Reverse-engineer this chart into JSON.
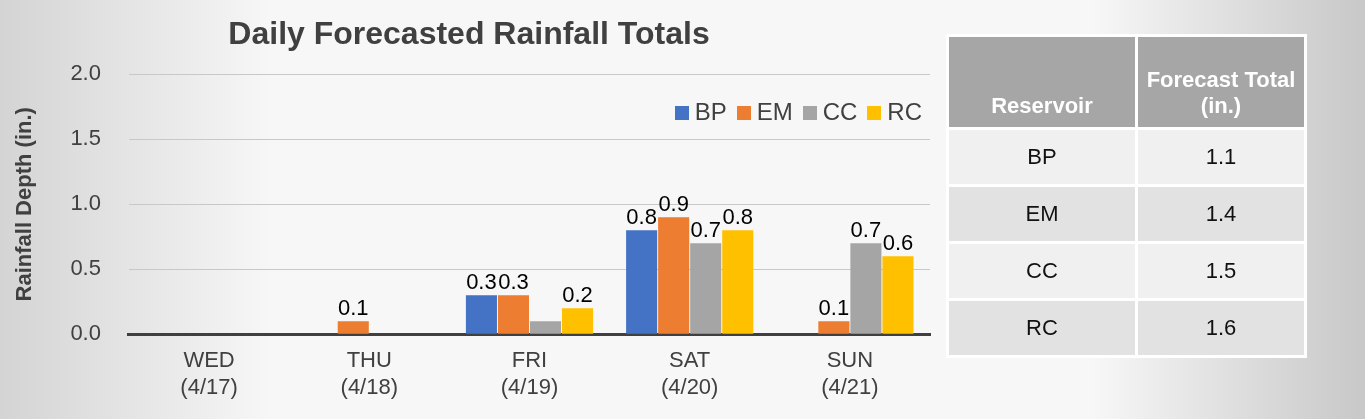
{
  "chart_data": [
    {
      "type": "bar",
      "title": "Daily Forecasted Rainfall Totals",
      "ylabel": "Rainfall Depth (in.)",
      "categories": [
        "WED (4/17)",
        "THU (4/18)",
        "FRI (4/19)",
        "SAT (4/20)",
        "SUN (4/21)"
      ],
      "series": [
        {
          "name": "BP",
          "color": "#4472c4",
          "values": [
            0,
            0,
            0.3,
            0.8,
            0
          ],
          "value_labels": [
            null,
            null,
            "0.3",
            "0.8",
            null
          ]
        },
        {
          "name": "EM",
          "color": "#ed7d31",
          "values": [
            0,
            0.1,
            0.3,
            0.9,
            0.1
          ],
          "value_labels": [
            null,
            "0.1",
            "0.3",
            "0.9",
            "0.1"
          ]
        },
        {
          "name": "CC",
          "color": "#a5a5a5",
          "values": [
            0,
            0,
            0.1,
            0.7,
            0.7
          ],
          "value_labels": [
            null,
            null,
            null,
            "0.7",
            "0.7"
          ]
        },
        {
          "name": "RC",
          "color": "#ffc000",
          "values": [
            0,
            0,
            0.2,
            0.8,
            0.6
          ],
          "value_labels": [
            null,
            null,
            "0.2",
            "0.8",
            "0.6"
          ]
        }
      ],
      "ylim": [
        0,
        2
      ],
      "yticks": [
        {
          "value": 0,
          "label": "0.0"
        },
        {
          "value": 0.5,
          "label": "0.5"
        },
        {
          "value": 1,
          "label": "1.0"
        },
        {
          "value": 1.5,
          "label": "1.5"
        },
        {
          "value": 2,
          "label": "2.0"
        }
      ],
      "grid": "y",
      "legend": "top right"
    },
    {
      "type": "other",
      "xlabel": "Reservoir",
      "ylabel": "Forecast Total (in.)",
      "categories": [
        "BP",
        "EM",
        "CC",
        "RC"
      ],
      "values": [
        1.1,
        1.4,
        1.5,
        1.6
      ],
      "data_labels": true
    }
  ]
}
